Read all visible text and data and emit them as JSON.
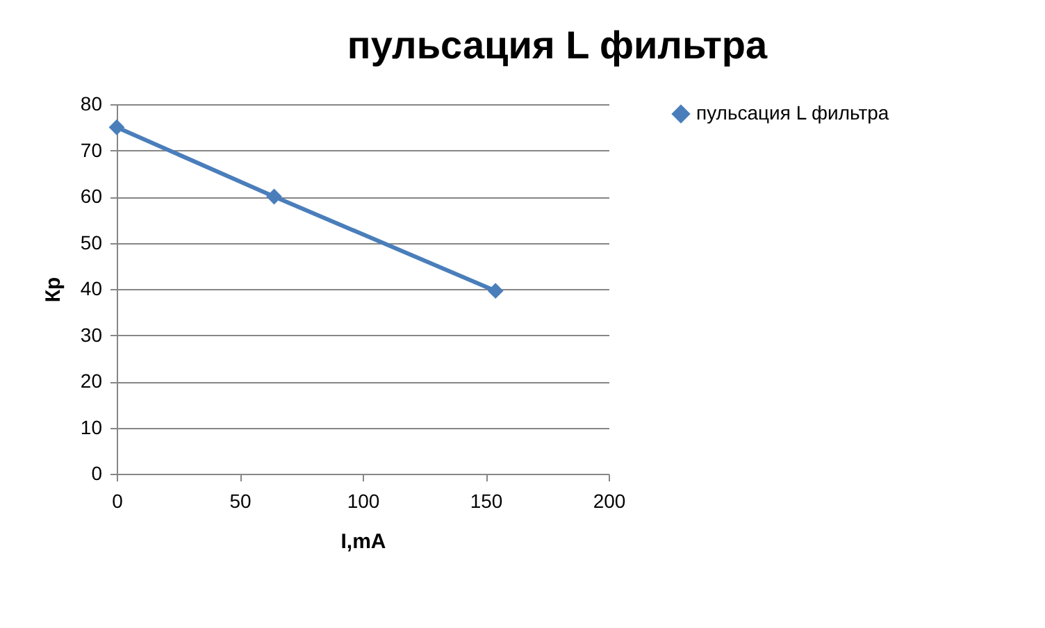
{
  "chart_data": {
    "type": "line",
    "title": "пульсация L фильтра",
    "xlabel": "I,mA",
    "ylabel": "Кр",
    "x": [
      0,
      64,
      154
    ],
    "series": [
      {
        "name": "пульсация L фильтра",
        "color": "#4a7ebb",
        "values": [
          75,
          60,
          39.6
        ]
      }
    ],
    "xlim": [
      0,
      200
    ],
    "xticks": [
      0,
      50,
      100,
      150,
      200
    ],
    "ylim": [
      0,
      80
    ],
    "yticks": [
      0,
      10,
      20,
      30,
      40,
      50,
      60,
      70,
      80
    ],
    "grid": "y",
    "legend": "right",
    "marker": "diamond",
    "line_style": "solid"
  }
}
